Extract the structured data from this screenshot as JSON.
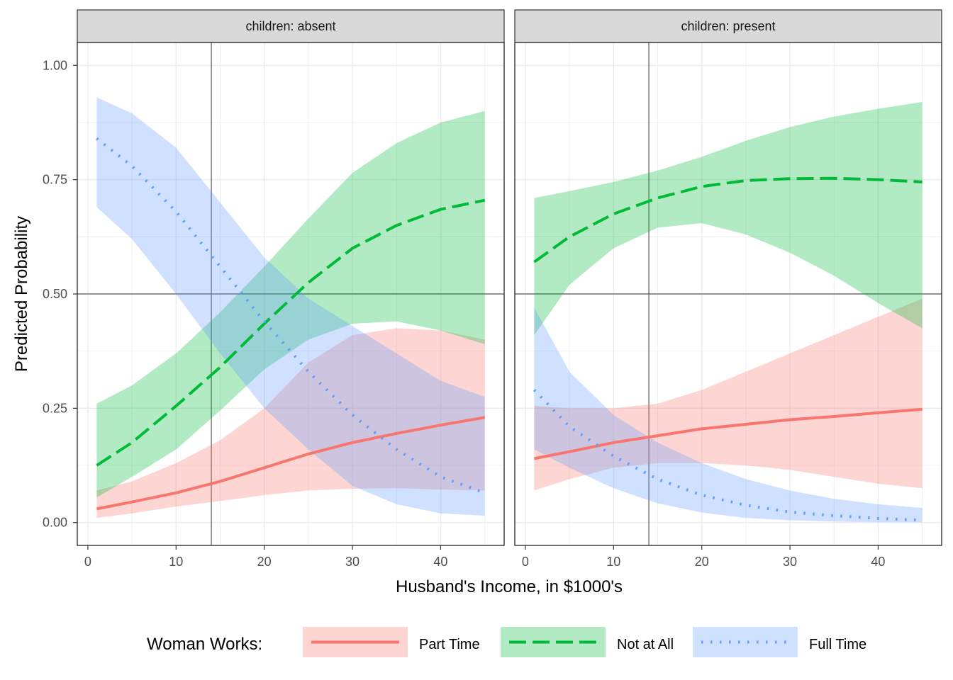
{
  "chart_data": {
    "type": "line",
    "title": "",
    "xlabel": "Husband's Income, in $1000's",
    "ylabel": "Predicted Probability",
    "xlim": [
      -1.2,
      47.2
    ],
    "ylim": [
      -0.05,
      1.05
    ],
    "x_ticks": [
      0,
      10,
      20,
      30,
      40
    ],
    "x_tick_labels": [
      "0",
      "10",
      "20",
      "30",
      "40"
    ],
    "y_ticks": [
      0,
      0.25,
      0.5,
      0.75,
      1
    ],
    "y_tick_labels": [
      "0.00",
      "0.25",
      "0.50",
      "0.75",
      "1.00"
    ],
    "reference_lines": {
      "x": 14,
      "y": 0.5
    },
    "grid": true,
    "legend": {
      "title": "Woman Works:",
      "position": "bottom",
      "entries": [
        {
          "name": "Part Time",
          "color": "#F8766D",
          "linetype": "solid"
        },
        {
          "name": "Not at All",
          "color": "#00BA38",
          "linetype": "dashed"
        },
        {
          "name": "Full Time",
          "color": "#619CFF",
          "linetype": "dotted"
        }
      ]
    },
    "x": [
      1,
      5,
      10,
      15,
      20,
      25,
      30,
      35,
      40,
      45
    ],
    "panels": [
      {
        "strip": "children: absent",
        "series": [
          {
            "name": "Part Time",
            "values": [
              0.03,
              0.045,
              0.065,
              0.09,
              0.12,
              0.15,
              0.175,
              0.195,
              0.213,
              0.23
            ],
            "lower": [
              0.01,
              0.02,
              0.035,
              0.047,
              0.06,
              0.07,
              0.074,
              0.075,
              0.072,
              0.07
            ],
            "upper": [
              0.07,
              0.09,
              0.13,
              0.18,
              0.25,
              0.35,
              0.41,
              0.425,
              0.42,
              0.4
            ]
          },
          {
            "name": "Not at All",
            "values": [
              0.125,
              0.175,
              0.255,
              0.34,
              0.435,
              0.525,
              0.6,
              0.65,
              0.685,
              0.705
            ],
            "lower": [
              0.055,
              0.1,
              0.16,
              0.245,
              0.335,
              0.4,
              0.435,
              0.44,
              0.42,
              0.39
            ],
            "upper": [
              0.26,
              0.3,
              0.37,
              0.46,
              0.56,
              0.665,
              0.765,
              0.83,
              0.875,
              0.9
            ]
          },
          {
            "name": "Full Time",
            "values": [
              0.84,
              0.78,
              0.68,
              0.56,
              0.44,
              0.33,
              0.235,
              0.16,
              0.1,
              0.065
            ],
            "lower": [
              0.69,
              0.62,
              0.5,
              0.37,
              0.25,
              0.16,
              0.08,
              0.04,
              0.02,
              0.015
            ],
            "upper": [
              0.93,
              0.895,
              0.82,
              0.7,
              0.58,
              0.49,
              0.43,
              0.37,
              0.31,
              0.275
            ]
          }
        ]
      },
      {
        "strip": "children: present",
        "series": [
          {
            "name": "Part Time",
            "values": [
              0.14,
              0.155,
              0.175,
              0.19,
              0.205,
              0.215,
              0.225,
              0.232,
              0.24,
              0.248
            ],
            "lower": [
              0.07,
              0.095,
              0.12,
              0.13,
              0.13,
              0.125,
              0.115,
              0.1,
              0.085,
              0.075
            ],
            "upper": [
              0.255,
              0.25,
              0.25,
              0.26,
              0.29,
              0.33,
              0.37,
              0.41,
              0.45,
              0.49
            ]
          },
          {
            "name": "Not at All",
            "values": [
              0.57,
              0.625,
              0.675,
              0.71,
              0.735,
              0.748,
              0.752,
              0.753,
              0.75,
              0.745
            ],
            "lower": [
              0.41,
              0.52,
              0.6,
              0.645,
              0.655,
              0.63,
              0.59,
              0.54,
              0.48,
              0.425
            ],
            "upper": [
              0.71,
              0.725,
              0.745,
              0.77,
              0.8,
              0.835,
              0.865,
              0.888,
              0.905,
              0.92
            ]
          },
          {
            "name": "Full Time",
            "values": [
              0.29,
              0.21,
              0.145,
              0.095,
              0.06,
              0.038,
              0.023,
              0.015,
              0.009,
              0.005
            ],
            "lower": [
              0.16,
              0.12,
              0.075,
              0.042,
              0.022,
              0.01,
              0.005,
              0.002,
              0.001,
              0.0005
            ],
            "upper": [
              0.47,
              0.33,
              0.235,
              0.175,
              0.13,
              0.095,
              0.07,
              0.052,
              0.04,
              0.032
            ]
          }
        ]
      }
    ]
  }
}
